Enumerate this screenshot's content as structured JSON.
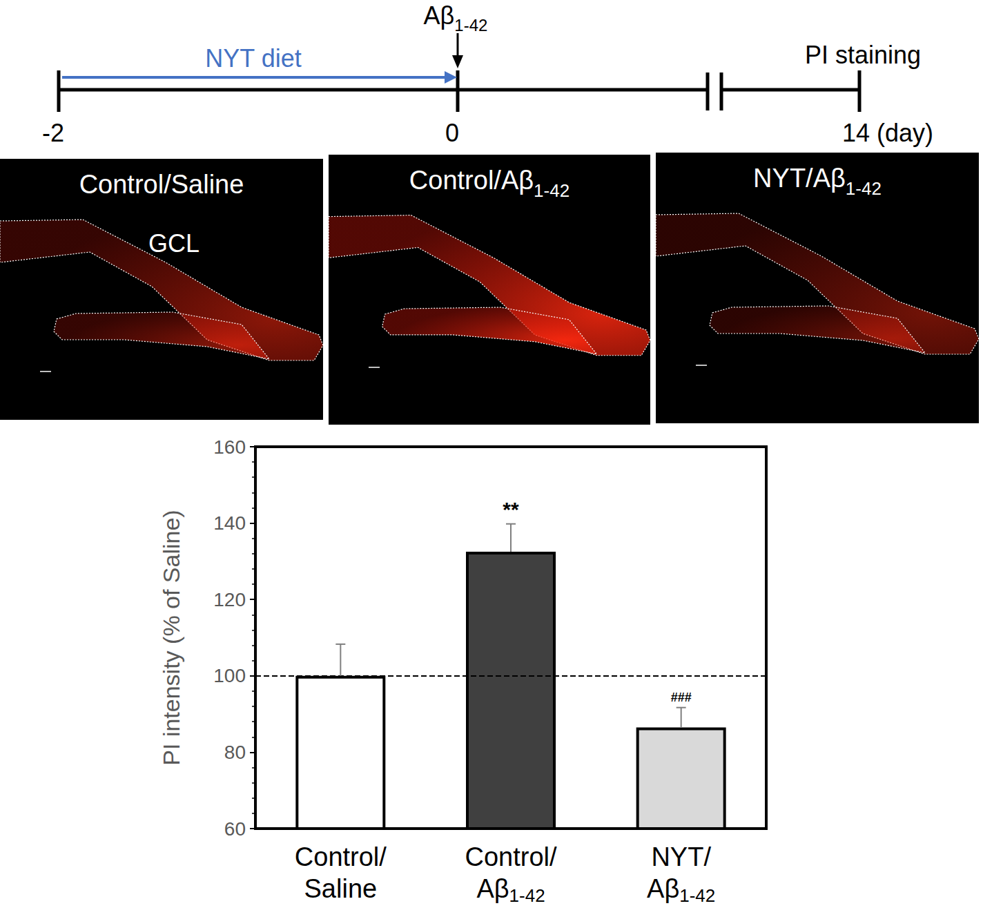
{
  "timeline": {
    "arrow_label": "NYT diet",
    "injection": "Aβ1-42",
    "endpoint": "PI staining",
    "ticks": [
      {
        "value": -2,
        "label": "-2"
      },
      {
        "value": 0,
        "label": "0"
      },
      {
        "value": 14,
        "label": "14 (day)"
      }
    ]
  },
  "panels": [
    {
      "title": "Control/Saline",
      "region_label": "GCL"
    },
    {
      "title": "Control/Aβ1-42"
    },
    {
      "title": "NYT/Aβ1-42"
    }
  ],
  "chart_data": {
    "type": "bar",
    "categories": [
      "Control/Saline",
      "Control/Aβ1-42",
      "NYT/Aβ1-42"
    ],
    "values": [
      100,
      132.5,
      86.5
    ],
    "errors": [
      8.3,
      7.3,
      5.2
    ],
    "colors": [
      "#ffffff",
      "#404040",
      "#d9d9d9"
    ],
    "annotations": [
      {
        "category": "Control/Aβ1-42",
        "text": "**"
      },
      {
        "category": "NYT/Aβ1-42",
        "text": "###"
      }
    ],
    "reference_line": 100,
    "ylabel": "PI intensity (% of Saline)",
    "ylim": [
      60,
      160
    ],
    "yticks": [
      60,
      80,
      100,
      120,
      140,
      160
    ],
    "grid": false
  }
}
